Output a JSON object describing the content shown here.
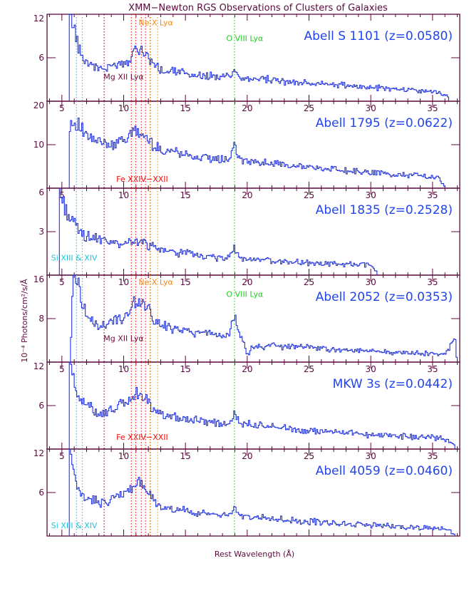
{
  "title": "XMM−Newton RGS Observations of Clusters of Galaxies",
  "chart_data": {
    "type": "line",
    "title": "XMM−Newton RGS Observations of Clusters of Galaxies",
    "xlabel": "Rest Wavelength (Å)",
    "ylabel": "10⁻⁴ Photons/cm²/s/Å",
    "xlim": [
      3.8,
      37.2
    ],
    "xticks": [
      5,
      10,
      15,
      20,
      25,
      30,
      35
    ],
    "colors": {
      "spectrum": "#2233dd",
      "fe": "#ee1111",
      "mg": "#6a0d3a",
      "ne": "#f08a10",
      "o": "#22cc22",
      "si": "#18c8e0"
    },
    "lines": {
      "si": [
        6.18,
        6.65
      ],
      "mg": [
        8.42
      ],
      "fe": [
        10.62,
        10.98,
        11.43,
        11.77,
        12.16
      ],
      "ne": [
        12.13,
        12.75
      ],
      "o": [
        18.97
      ]
    },
    "line_labels": [
      {
        "text": "Ne X Lyα",
        "color": "#f08a10",
        "panel": 0,
        "x": 12.6,
        "y": 10.5
      },
      {
        "text": "O VIII Lyα",
        "color": "#22cc22",
        "panel": 0,
        "x": 19.8,
        "y": 8.3
      },
      {
        "text": "Mg XII Lyα",
        "color": "#6a0d3a",
        "panel": 0,
        "x": 10.0,
        "y": 3.0
      },
      {
        "text": "Fe XXIV−XXII",
        "color": "#ee1111",
        "panel": 1,
        "x": 11.5,
        "y": 1.5
      },
      {
        "text": "Si XIII & XIV",
        "color": "#18c8e0",
        "panel": 2,
        "x": 6.0,
        "y": 1.0
      },
      {
        "text": "Ne X Lyα",
        "color": "#f08a10",
        "panel": 3,
        "x": 12.6,
        "y": 14.2
      },
      {
        "text": "O VIII Lyα",
        "color": "#22cc22",
        "panel": 3,
        "x": 19.8,
        "y": 12.0
      },
      {
        "text": "Mg XII Lyα",
        "color": "#6a0d3a",
        "panel": 3,
        "x": 10.0,
        "y": 3.9
      },
      {
        "text": "Fe XXIV−XXII",
        "color": "#ee1111",
        "panel": 4,
        "x": 11.5,
        "y": 1.3
      },
      {
        "text": "Si XIII & XIV",
        "color": "#18c8e0",
        "panel": 5,
        "x": 6.0,
        "y": 1.1
      }
    ],
    "panels": [
      {
        "name": "Abell S 1101",
        "label": "Abell S 1101 (z=0.0580)",
        "ylim": [
          0,
          12
        ],
        "yticks": [
          6,
          12
        ],
        "xmin": 5.6,
        "xmax": 36.3,
        "series": [
          [
            5.6,
            12.5
          ],
          [
            6.0,
            10.0
          ],
          [
            6.5,
            6.5
          ],
          [
            7.0,
            5.4
          ],
          [
            7.5,
            4.9
          ],
          [
            8.0,
            4.6
          ],
          [
            8.5,
            4.5
          ],
          [
            9.0,
            4.9
          ],
          [
            9.5,
            5.2
          ],
          [
            10.0,
            5.5
          ],
          [
            10.5,
            5.9
          ],
          [
            11.0,
            7.4
          ],
          [
            11.5,
            7.0
          ],
          [
            12.0,
            6.2
          ],
          [
            12.5,
            4.8
          ],
          [
            13.0,
            4.3
          ],
          [
            14.0,
            4.1
          ],
          [
            15.0,
            3.8
          ],
          [
            16.0,
            3.6
          ],
          [
            17.0,
            3.4
          ],
          [
            18.0,
            3.3
          ],
          [
            18.6,
            3.5
          ],
          [
            18.97,
            4.4
          ],
          [
            19.4,
            3.3
          ],
          [
            20.0,
            3.1
          ],
          [
            22.0,
            2.9
          ],
          [
            24.0,
            2.6
          ],
          [
            26.0,
            2.4
          ],
          [
            28.0,
            2.2
          ],
          [
            30.0,
            1.9
          ],
          [
            32.0,
            1.7
          ],
          [
            34.0,
            1.5
          ],
          [
            35.5,
            1.3
          ],
          [
            36.3,
            0.4
          ]
        ]
      },
      {
        "name": "Abell 1795",
        "label": "Abell 1795 (z=0.0622)",
        "ylim": [
          0,
          20
        ],
        "yticks": [
          10,
          20
        ],
        "xmin": 5.6,
        "xmax": 36.0,
        "series": [
          [
            5.6,
            14.5
          ],
          [
            6.0,
            15.5
          ],
          [
            6.5,
            14.0
          ],
          [
            7.0,
            12.0
          ],
          [
            7.5,
            10.8
          ],
          [
            8.0,
            10.5
          ],
          [
            8.5,
            10.0
          ],
          [
            9.0,
            10.2
          ],
          [
            9.5,
            10.8
          ],
          [
            10.0,
            11.2
          ],
          [
            10.5,
            11.8
          ],
          [
            11.0,
            13.0
          ],
          [
            11.5,
            12.3
          ],
          [
            12.0,
            11.0
          ],
          [
            12.5,
            9.6
          ],
          [
            13.0,
            9.1
          ],
          [
            14.0,
            8.6
          ],
          [
            15.0,
            7.8
          ],
          [
            16.0,
            7.2
          ],
          [
            17.0,
            6.7
          ],
          [
            18.0,
            6.5
          ],
          [
            18.6,
            6.8
          ],
          [
            18.97,
            9.8
          ],
          [
            19.4,
            6.6
          ],
          [
            20.0,
            6.2
          ],
          [
            22.0,
            5.6
          ],
          [
            24.0,
            5.0
          ],
          [
            26.0,
            4.5
          ],
          [
            28.0,
            4.0
          ],
          [
            30.0,
            3.6
          ],
          [
            32.0,
            3.2
          ],
          [
            34.0,
            2.8
          ],
          [
            35.5,
            2.4
          ],
          [
            36.0,
            0.4
          ]
        ]
      },
      {
        "name": "Abell 1835",
        "label": "Abell 1835 (z=0.2528)",
        "ylim": [
          0,
          6
        ],
        "yticks": [
          3,
          6
        ],
        "xmin": 4.8,
        "xmax": 30.5,
        "series": [
          [
            4.8,
            6.0
          ],
          [
            5.0,
            5.3
          ],
          [
            5.5,
            4.2
          ],
          [
            6.0,
            3.5
          ],
          [
            6.5,
            3.0
          ],
          [
            7.0,
            2.7
          ],
          [
            7.5,
            2.6
          ],
          [
            8.0,
            2.4
          ],
          [
            8.5,
            2.3
          ],
          [
            9.0,
            2.2
          ],
          [
            9.5,
            2.1
          ],
          [
            10.0,
            2.2
          ],
          [
            10.5,
            2.3
          ],
          [
            11.0,
            2.4
          ],
          [
            11.5,
            2.2
          ],
          [
            12.0,
            2.1
          ],
          [
            12.5,
            1.9
          ],
          [
            13.0,
            1.7
          ],
          [
            14.0,
            1.6
          ],
          [
            15.0,
            1.5
          ],
          [
            16.0,
            1.35
          ],
          [
            17.0,
            1.25
          ],
          [
            18.0,
            1.2
          ],
          [
            18.6,
            1.3
          ],
          [
            18.97,
            1.9
          ],
          [
            19.4,
            1.2
          ],
          [
            20.0,
            1.1
          ],
          [
            22.0,
            1.0
          ],
          [
            24.0,
            0.9
          ],
          [
            26.0,
            0.8
          ],
          [
            28.0,
            0.75
          ],
          [
            30.0,
            0.7
          ],
          [
            30.5,
            0.1
          ]
        ]
      },
      {
        "name": "Abell 2052",
        "label": "Abell 2052 (z=0.0353)",
        "ylim": [
          0,
          16
        ],
        "yticks": [
          8,
          16
        ],
        "xmin": 5.7,
        "xmax": 37.0,
        "series": [
          [
            5.7,
            0.5
          ],
          [
            5.9,
            16.5
          ],
          [
            6.2,
            16.0
          ],
          [
            6.5,
            12.5
          ],
          [
            7.0,
            8.5
          ],
          [
            7.5,
            7.2
          ],
          [
            8.0,
            6.8
          ],
          [
            8.5,
            6.4
          ],
          [
            9.0,
            7.5
          ],
          [
            9.5,
            7.8
          ],
          [
            10.0,
            8.3
          ],
          [
            10.5,
            9.0
          ],
          [
            11.0,
            11.6
          ],
          [
            11.5,
            10.8
          ],
          [
            12.0,
            10.3
          ],
          [
            12.5,
            7.3
          ],
          [
            13.0,
            6.7
          ],
          [
            14.0,
            6.3
          ],
          [
            15.0,
            5.9
          ],
          [
            16.0,
            5.5
          ],
          [
            17.0,
            5.2
          ],
          [
            18.0,
            5.0
          ],
          [
            18.6,
            5.4
          ],
          [
            18.97,
            8.0
          ],
          [
            19.4,
            5.2
          ],
          [
            19.8,
            3.2
          ],
          [
            20.0,
            1.0
          ],
          [
            20.4,
            2.8
          ],
          [
            22.0,
            3.0
          ],
          [
            24.0,
            2.8
          ],
          [
            26.0,
            2.5
          ],
          [
            28.0,
            2.2
          ],
          [
            30.0,
            2.0
          ],
          [
            32.0,
            1.8
          ],
          [
            34.0,
            1.6
          ],
          [
            36.0,
            1.4
          ],
          [
            36.8,
            4.5
          ],
          [
            37.0,
            0.3
          ]
        ]
      },
      {
        "name": "MKW 3s",
        "label": "MKW 3s (z=0.0442)",
        "ylim": [
          0,
          12
        ],
        "yticks": [
          6,
          12
        ],
        "xmin": 5.6,
        "xmax": 36.8,
        "series": [
          [
            5.6,
            12.5
          ],
          [
            6.0,
            9.0
          ],
          [
            6.5,
            6.8
          ],
          [
            7.0,
            6.0
          ],
          [
            7.5,
            5.5
          ],
          [
            8.0,
            5.2
          ],
          [
            8.5,
            5.0
          ],
          [
            9.0,
            5.3
          ],
          [
            9.5,
            5.8
          ],
          [
            10.0,
            6.2
          ],
          [
            10.5,
            6.6
          ],
          [
            11.0,
            7.8
          ],
          [
            11.5,
            7.2
          ],
          [
            12.0,
            6.5
          ],
          [
            12.5,
            5.3
          ],
          [
            13.0,
            4.8
          ],
          [
            14.0,
            4.5
          ],
          [
            15.0,
            4.2
          ],
          [
            16.0,
            3.9
          ],
          [
            17.0,
            3.7
          ],
          [
            18.0,
            3.5
          ],
          [
            18.6,
            3.7
          ],
          [
            18.97,
            4.9
          ],
          [
            19.4,
            3.6
          ],
          [
            20.0,
            3.4
          ],
          [
            22.0,
            3.0
          ],
          [
            24.0,
            2.7
          ],
          [
            26.0,
            2.4
          ],
          [
            28.0,
            2.2
          ],
          [
            30.0,
            2.0
          ],
          [
            32.0,
            1.8
          ],
          [
            34.0,
            1.6
          ],
          [
            36.0,
            1.5
          ],
          [
            36.8,
            0.3
          ]
        ]
      },
      {
        "name": "Abell 4059",
        "label": "Abell 4059 (z=0.0460)",
        "ylim": [
          0,
          12
        ],
        "yticks": [
          6,
          12
        ],
        "xmin": 5.6,
        "xmax": 36.8,
        "series": [
          [
            5.6,
            12.5
          ],
          [
            6.0,
            8.0
          ],
          [
            6.5,
            6.0
          ],
          [
            7.0,
            5.2
          ],
          [
            7.5,
            5.0
          ],
          [
            8.0,
            4.7
          ],
          [
            8.5,
            4.6
          ],
          [
            9.0,
            5.0
          ],
          [
            9.5,
            5.4
          ],
          [
            10.0,
            5.9
          ],
          [
            10.5,
            6.2
          ],
          [
            11.0,
            7.5
          ],
          [
            11.5,
            6.9
          ],
          [
            12.0,
            6.0
          ],
          [
            12.5,
            4.6
          ],
          [
            13.0,
            4.1
          ],
          [
            14.0,
            3.8
          ],
          [
            15.0,
            3.5
          ],
          [
            16.0,
            3.2
          ],
          [
            17.0,
            3.0
          ],
          [
            18.0,
            2.8
          ],
          [
            18.6,
            3.0
          ],
          [
            18.97,
            4.0
          ],
          [
            19.4,
            2.9
          ],
          [
            20.0,
            2.7
          ],
          [
            22.0,
            2.4
          ],
          [
            24.0,
            2.1
          ],
          [
            26.0,
            1.9
          ],
          [
            28.0,
            1.7
          ],
          [
            30.0,
            1.5
          ],
          [
            32.0,
            1.3
          ],
          [
            34.0,
            1.2
          ],
          [
            36.0,
            1.1
          ],
          [
            36.8,
            0.3
          ]
        ]
      }
    ]
  }
}
